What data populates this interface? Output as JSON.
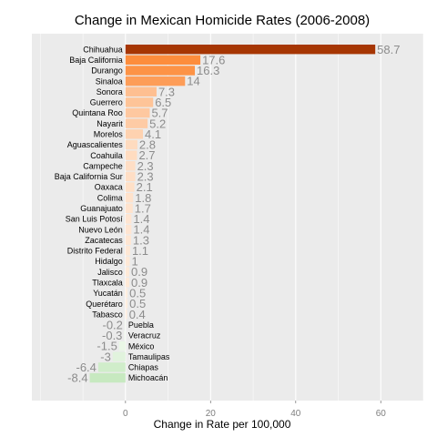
{
  "chart_data": {
    "type": "bar",
    "orientation": "horizontal",
    "title": "Change in Mexican Homicide Rates (2006-2008)",
    "xlabel": "Change in Rate per 100,000",
    "ylabel": "",
    "xlim": [
      -22,
      70
    ],
    "xticks": [
      0,
      20,
      40,
      60
    ],
    "grid": true,
    "categories": [
      "Chihuahua",
      "Baja California",
      "Durango",
      "Sinaloa",
      "Sonora",
      "Guerrero",
      "Quintana Roo",
      "Nayarit",
      "Morelos",
      "Aguascalientes",
      "Coahuila",
      "Campeche",
      "Baja California Sur",
      "Oaxaca",
      "Colima",
      "Guanajuato",
      "San Luis Potosí",
      "Nuevo León",
      "Zacatecas",
      "Distrito Federal",
      "Hidalgo",
      "Jalisco",
      "Tlaxcala",
      "Yucatán",
      "Querétaro",
      "Tabasco",
      "Puebla",
      "Veracruz",
      "México",
      "Tamaulipas",
      "Chiapas",
      "Michoacán"
    ],
    "values": [
      58.7,
      17.6,
      16.3,
      14,
      7.3,
      6.5,
      5.7,
      5.2,
      4.1,
      2.8,
      2.7,
      2.3,
      2.3,
      2.1,
      1.8,
      1.7,
      1.4,
      1.4,
      1.3,
      1.1,
      1,
      0.9,
      0.9,
      0.5,
      0.5,
      0.4,
      -0.2,
      -0.3,
      -1.5,
      -3,
      -6.4,
      -8.4
    ],
    "value_labels": [
      "58.7",
      "17.6",
      "16.3",
      "14",
      "7.3",
      "6.5",
      "5.7",
      "5.2",
      "4.1",
      "2.8",
      "2.7",
      "2.3",
      "2.3",
      "2.1",
      "1.8",
      "1.7",
      "1.4",
      "1.4",
      "1.3",
      "1.1",
      "1",
      "0.9",
      "0.9",
      "0.5",
      "0.5",
      "0.4",
      "-0.2",
      "-0.3",
      "-1.5",
      "-3",
      "-6.4",
      "-8.4"
    ],
    "colors": {
      "panel_background": "#ebebeb",
      "grid_line": "#ffffff",
      "max_bar": "#a63603",
      "positive_high": "#fd8d3c",
      "positive_low": "#fff5eb",
      "negative_low": "#f7fcf5",
      "negative_high": "#c7e9c0"
    }
  }
}
